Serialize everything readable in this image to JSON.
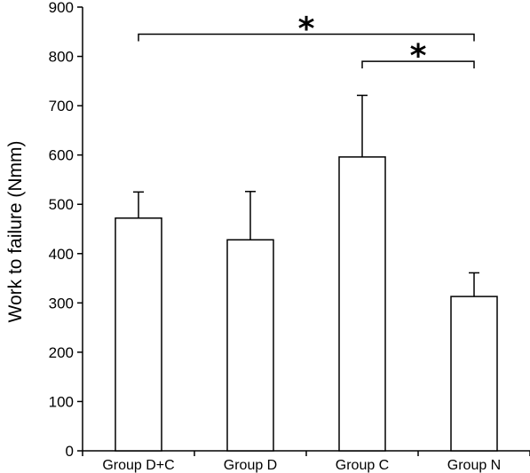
{
  "chart_data": {
    "type": "bar",
    "title": "",
    "xlabel": "",
    "ylabel": "Work to failure (Nmm)",
    "ylim": [
      0,
      900
    ],
    "yticks": [
      0,
      100,
      200,
      300,
      400,
      500,
      600,
      700,
      800,
      900
    ],
    "categories": [
      "Group D+C",
      "Group D",
      "Group C",
      "Group N"
    ],
    "values": [
      472,
      428,
      596,
      313
    ],
    "errors": [
      53,
      98,
      125,
      48
    ],
    "grid": false,
    "legend": "none",
    "bar_fill": "#ffffff",
    "bar_stroke": "#000000",
    "significance": [
      {
        "from": "Group D+C",
        "to": "Group N",
        "level": 845,
        "marker": "*"
      },
      {
        "from": "Group C",
        "to": "Group N",
        "level": 790,
        "marker": "*"
      }
    ]
  }
}
